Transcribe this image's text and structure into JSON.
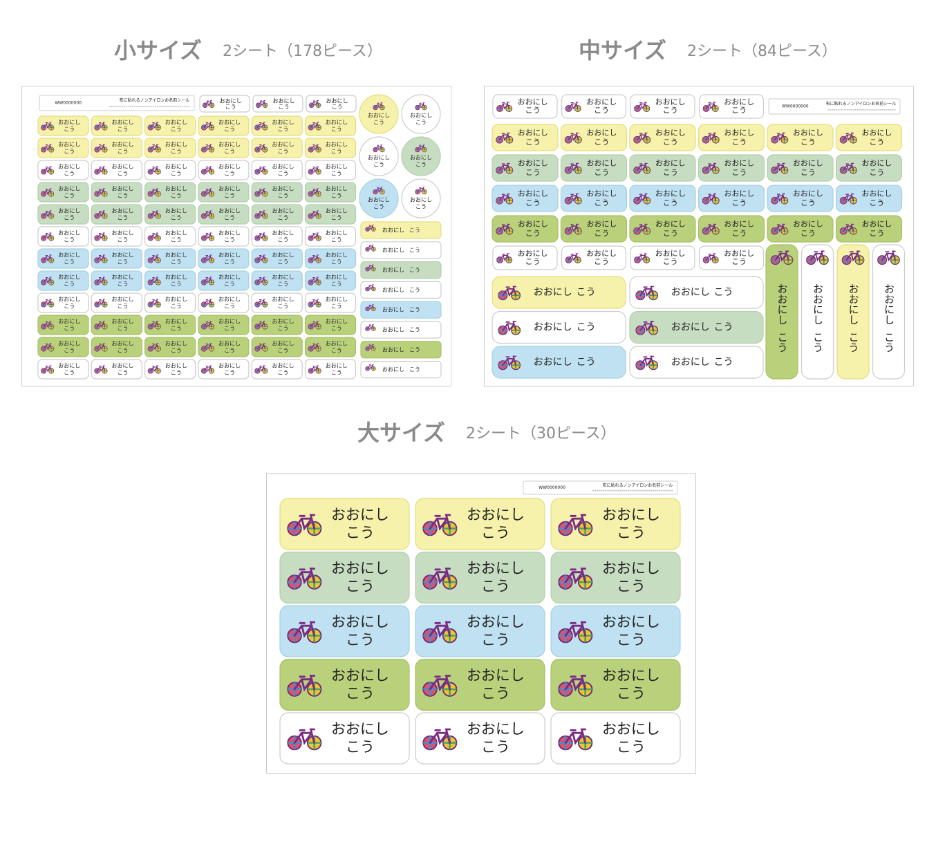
{
  "sections": [
    {
      "title": "小サイズ",
      "subtitle": "2シート（178ピース）",
      "sheet_code": "WW0000000",
      "sheet_caption": "布に貼れるノンアイロンお名前シール"
    },
    {
      "title": "中サイズ",
      "subtitle": "2シート（84ピース）",
      "sheet_code": "WW0000000",
      "sheet_caption": "布に貼れるノンアイロンお名前シール"
    },
    {
      "title": "大サイズ",
      "subtitle": "2シート（30ピース）",
      "sheet_code": "WW0000000",
      "sheet_caption": "布に貼れるノンアイロンお名前シール"
    }
  ],
  "label": {
    "family": "おおにし",
    "given": "こう"
  }
}
